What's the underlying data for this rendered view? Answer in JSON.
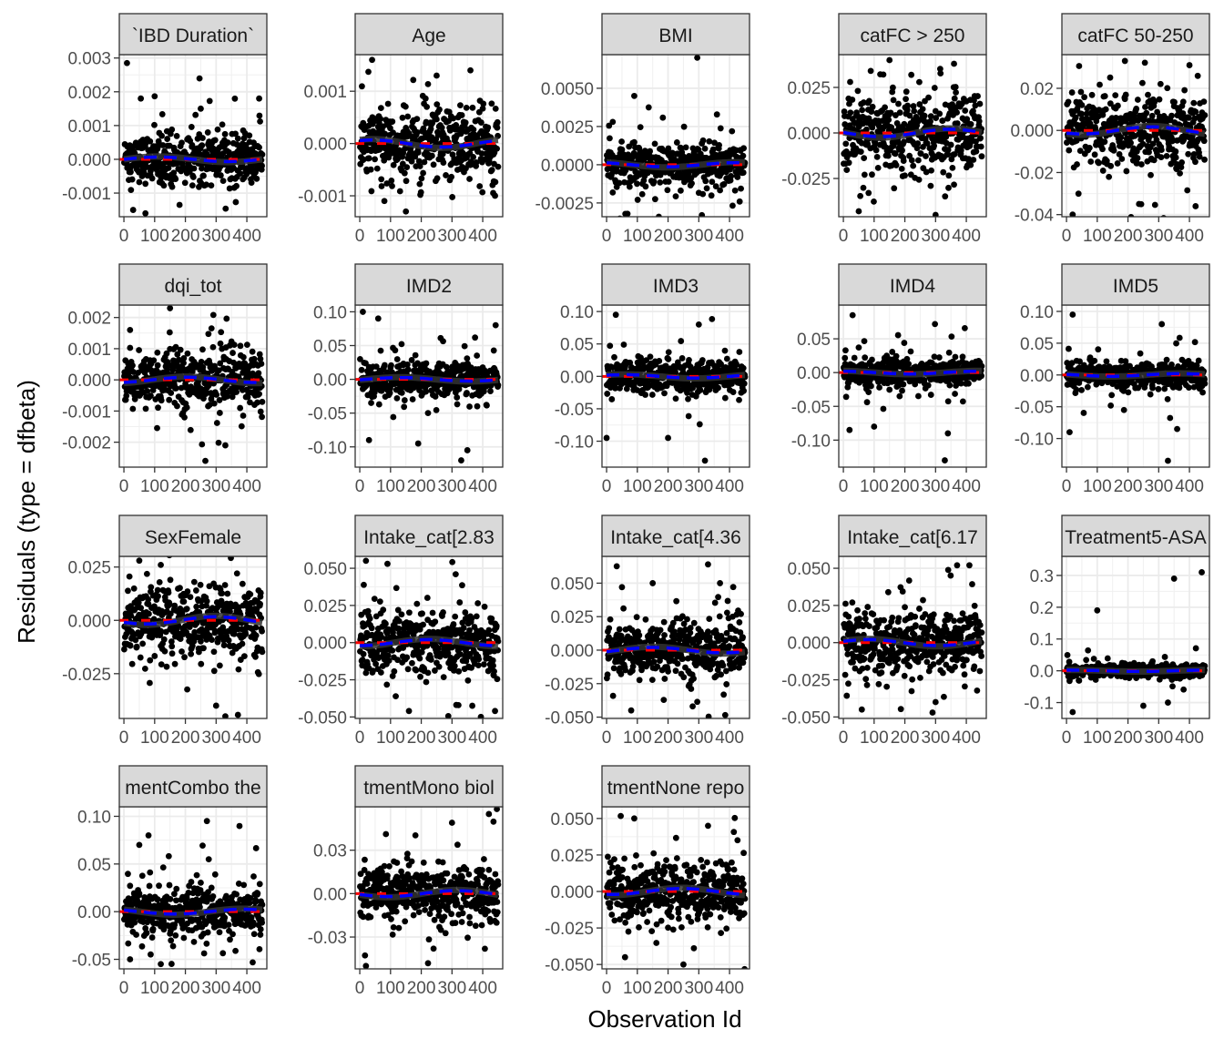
{
  "chart_data": {
    "type": "scatter",
    "description_note": "",
    "xlabel": "Observation Id",
    "ylabel": "Residuals (type = dfbeta)",
    "x_ticks": [
      0,
      100,
      200,
      300,
      400
    ],
    "x_range": [
      -15,
      465
    ],
    "n_observations": 450,
    "series_styles": {
      "points": "#000000",
      "smooth_line": "#333333",
      "reference_line": "#ff0000",
      "mean_line": "#0000ff"
    },
    "panels": [
      {
        "title": "`IBD Duration`",
        "yrange": [
          -0.0017,
          0.0031
        ],
        "yticks": [
          -0.001,
          0.0,
          0.001,
          0.002,
          0.003
        ],
        "yticklabels": [
          "-0.001",
          "0.000",
          "0.001",
          "0.002",
          "0.003"
        ],
        "spread": 0.0004,
        "extremes": [
          [
            10,
            0.00285
          ],
          [
            55,
            0.0018
          ],
          [
            440,
            0.0018
          ],
          [
            250,
            0.0015
          ],
          [
            30,
            -0.0015
          ],
          [
            70,
            -0.0016
          ]
        ]
      },
      {
        "title": "Age",
        "yrange": [
          -0.0014,
          0.0017
        ],
        "yticks": [
          -0.001,
          0.0,
          0.001
        ],
        "yticklabels": [
          "-0.001",
          "0.000",
          "0.001"
        ],
        "spread": 0.0004,
        "extremes": [
          [
            40,
            0.0016
          ],
          [
            360,
            0.0014
          ],
          [
            150,
            -0.0013
          ],
          [
            80,
            -0.0011
          ],
          [
            250,
            0.0013
          ]
        ]
      },
      {
        "title": "BMI",
        "yrange": [
          -0.0034,
          0.0072
        ],
        "yticks": [
          -0.0025,
          0.0,
          0.0025,
          0.005
        ],
        "yticklabels": [
          "-0.0025",
          "0.0000",
          "0.0025",
          "0.0050"
        ],
        "spread": 0.0008,
        "extremes": [
          [
            295,
            0.007
          ],
          [
            90,
            0.0045
          ],
          [
            170,
            -0.0034
          ],
          [
            310,
            -0.0033
          ],
          [
            20,
            0.0028
          ]
        ]
      },
      {
        "title": "catFC > 250",
        "yrange": [
          -0.046,
          0.043
        ],
        "yticks": [
          -0.025,
          0.0,
          0.025
        ],
        "yticklabels": [
          "-0.025",
          "0.000",
          "0.025"
        ],
        "spread": 0.012,
        "extremes": [
          [
            150,
            0.04
          ],
          [
            360,
            0.038
          ],
          [
            300,
            -0.045
          ],
          [
            50,
            -0.043
          ]
        ]
      },
      {
        "title": "catFC 50-250",
        "yrange": [
          -0.041,
          0.036
        ],
        "yticks": [
          -0.04,
          -0.02,
          0.0,
          0.02
        ],
        "yticklabels": [
          "-0.04",
          "-0.02",
          "0.000",
          "0.02"
        ],
        "spread": 0.01,
        "extremes": [
          [
            190,
            0.033
          ],
          [
            400,
            0.031
          ],
          [
            20,
            -0.04
          ],
          [
            420,
            -0.036
          ]
        ]
      },
      {
        "title": "dqi_tot",
        "yrange": [
          -0.0028,
          0.0024
        ],
        "yticks": [
          -0.002,
          -0.001,
          0.0,
          0.001,
          0.002
        ],
        "yticklabels": [
          "-0.002",
          "-0.001",
          "0.000",
          "0.001",
          "0.002"
        ],
        "spread": 0.0005,
        "extremes": [
          [
            150,
            0.0023
          ],
          [
            265,
            -0.0026
          ],
          [
            330,
            -0.0021
          ],
          [
            20,
            0.0016
          ]
        ]
      },
      {
        "title": "IMD2",
        "yrange": [
          -0.13,
          0.11
        ],
        "yticks": [
          -0.1,
          -0.05,
          0.0,
          0.05,
          0.1
        ],
        "yticklabels": [
          "-0.10",
          "-0.05",
          "0.00",
          "0.05",
          "0.10"
        ],
        "spread": 0.015,
        "extremes": [
          [
            10,
            0.1
          ],
          [
            60,
            0.09
          ],
          [
            330,
            -0.12
          ],
          [
            350,
            -0.105
          ],
          [
            190,
            -0.095
          ],
          [
            30,
            -0.09
          ]
        ]
      },
      {
        "title": "IMD3",
        "yrange": [
          -0.14,
          0.11
        ],
        "yticks": [
          -0.1,
          -0.05,
          0.0,
          0.05,
          0.1
        ],
        "yticklabels": [
          "-0.10",
          "-0.05",
          "0.00",
          "0.05",
          "0.10"
        ],
        "spread": 0.015,
        "extremes": [
          [
            30,
            0.095
          ],
          [
            320,
            -0.13
          ],
          [
            200,
            -0.095
          ],
          [
            0,
            -0.095
          ],
          [
            300,
            0.08
          ]
        ]
      },
      {
        "title": "IMD4",
        "yrange": [
          -0.14,
          0.1
        ],
        "yticks": [
          -0.1,
          -0.05,
          0.0,
          0.05
        ],
        "yticklabels": [
          "-0.10",
          "-0.05",
          "0.00",
          "0.05"
        ],
        "spread": 0.012,
        "extremes": [
          [
            30,
            0.085
          ],
          [
            330,
            -0.13
          ],
          [
            340,
            -0.09
          ],
          [
            20,
            -0.085
          ],
          [
            100,
            -0.08
          ]
        ]
      },
      {
        "title": "IMD5",
        "yrange": [
          -0.145,
          0.11
        ],
        "yticks": [
          -0.1,
          -0.05,
          0.0,
          0.05,
          0.1
        ],
        "yticklabels": [
          "-0.10",
          "-0.05",
          "0.00",
          "0.05",
          "0.10"
        ],
        "spread": 0.012,
        "extremes": [
          [
            20,
            0.095
          ],
          [
            310,
            0.08
          ],
          [
            330,
            -0.135
          ],
          [
            10,
            -0.09
          ],
          [
            360,
            -0.085
          ]
        ]
      },
      {
        "title": "SexFemale",
        "yrange": [
          -0.046,
          0.03
        ],
        "yticks": [
          -0.025,
          0.0,
          0.025
        ],
        "yticklabels": [
          "-0.025",
          "0.000",
          "0.025"
        ],
        "spread": 0.01,
        "extremes": [
          [
            330,
            -0.045
          ],
          [
            300,
            -0.04
          ],
          [
            50,
            0.028
          ],
          [
            120,
            0.026
          ]
        ]
      },
      {
        "title": "Intake_cat[2.83",
        "yrange": [
          -0.051,
          0.058
        ],
        "yticks": [
          -0.05,
          -0.025,
          0.0,
          0.025,
          0.05
        ],
        "yticklabels": [
          "-0.050",
          "-0.025",
          "0.000",
          "0.025",
          "0.050"
        ],
        "spread": 0.012,
        "extremes": [
          [
            20,
            0.055
          ],
          [
            90,
            0.053
          ],
          [
            440,
            -0.046
          ],
          [
            160,
            -0.046
          ]
        ]
      },
      {
        "title": "Intake_cat[4.36",
        "yrange": [
          -0.051,
          0.07
        ],
        "yticks": [
          -0.05,
          -0.025,
          0.0,
          0.025,
          0.05
        ],
        "yticklabels": [
          "-0.050",
          "-0.025",
          "0.000",
          "0.025",
          "0.050"
        ],
        "spread": 0.012,
        "extremes": [
          [
            330,
            0.064
          ],
          [
            80,
            -0.045
          ],
          [
            280,
            -0.042
          ],
          [
            150,
            0.05
          ]
        ]
      },
      {
        "title": "Intake_cat[6.17",
        "yrange": [
          -0.051,
          0.058
        ],
        "yticks": [
          -0.05,
          -0.025,
          0.0,
          0.025,
          0.05
        ],
        "yticklabels": [
          "-0.050",
          "-0.025",
          "0.000",
          "0.025",
          "0.050"
        ],
        "spread": 0.012,
        "extremes": [
          [
            370,
            0.052
          ],
          [
            410,
            0.052
          ],
          [
            290,
            -0.047
          ],
          [
            60,
            -0.045
          ]
        ]
      },
      {
        "title": "Treatment5-ASA",
        "yrange": [
          -0.15,
          0.36
        ],
        "yticks": [
          -0.1,
          0.0,
          0.1,
          0.2,
          0.3
        ],
        "yticklabels": [
          "-0.1",
          "0.0",
          "0.1",
          "0.2",
          "0.3"
        ],
        "spread": 0.012,
        "extremes": [
          [
            440,
            0.31
          ],
          [
            350,
            0.29
          ],
          [
            100,
            0.19
          ],
          [
            20,
            -0.13
          ],
          [
            250,
            -0.11
          ],
          [
            330,
            -0.1
          ]
        ]
      },
      {
        "title": "mentCombo the",
        "yrange": [
          -0.06,
          0.11
        ],
        "yticks": [
          -0.05,
          0.0,
          0.05,
          0.1
        ],
        "yticklabels": [
          "-0.05",
          "0.00",
          "0.05",
          "0.10"
        ],
        "spread": 0.015,
        "extremes": [
          [
            270,
            0.095
          ],
          [
            80,
            0.08
          ],
          [
            50,
            0.07
          ],
          [
            120,
            -0.055
          ],
          [
            20,
            -0.05
          ]
        ]
      },
      {
        "title": "tmentMono biol",
        "yrange": [
          -0.052,
          0.06
        ],
        "yticks": [
          -0.03,
          0.0,
          0.03
        ],
        "yticklabels": [
          "-0.03",
          "0.00",
          "0.03"
        ],
        "spread": 0.012,
        "extremes": [
          [
            420,
            0.055
          ],
          [
            20,
            -0.05
          ],
          [
            300,
            0.049
          ],
          [
            240,
            -0.038
          ]
        ]
      },
      {
        "title": "tmentNone repo",
        "yrange": [
          -0.053,
          0.058
        ],
        "yticks": [
          -0.05,
          -0.025,
          0.0,
          0.025,
          0.05
        ],
        "yticklabels": [
          "-0.050",
          "-0.025",
          "0.000",
          "0.025",
          "0.050"
        ],
        "spread": 0.012,
        "extremes": [
          [
            250,
            -0.05
          ],
          [
            90,
            0.05
          ],
          [
            330,
            0.045
          ],
          [
            60,
            -0.045
          ]
        ]
      }
    ]
  }
}
